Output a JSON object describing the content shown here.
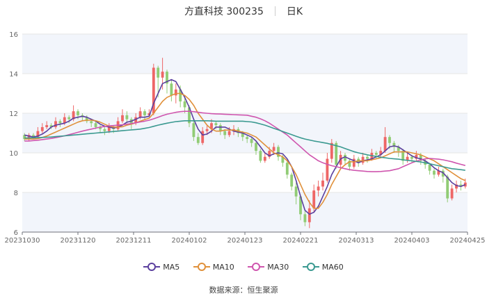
{
  "header": {
    "stock": "方直科技 300235",
    "period": "日K"
  },
  "source": "数据来源：恒生聚源",
  "colors": {
    "up": "#ee6666",
    "down": "#91cc75",
    "ma5": "#5b3f9e",
    "ma10": "#e0903a",
    "ma30": "#cf55ae",
    "ma60": "#3a9990",
    "grid": "#e6e6e6",
    "band": "#f2f5fb"
  },
  "chart_data": {
    "type": "candlestick",
    "title": "方直科技 300235",
    "subtitle": "日K",
    "ylim": [
      6,
      16
    ],
    "yticks": [
      6,
      8,
      10,
      12,
      14,
      16
    ],
    "xticks": [
      "20231030",
      "20231120",
      "20231211",
      "20240102",
      "20240123",
      "20240221",
      "20240313",
      "20240403",
      "20240425"
    ],
    "legend": [
      "MA5",
      "MA10",
      "MA30",
      "MA60"
    ],
    "candles": [
      [
        10.9,
        10.7,
        11.0,
        10.6
      ],
      [
        10.7,
        10.9,
        11.0,
        10.6
      ],
      [
        10.9,
        10.8,
        11.0,
        10.7
      ],
      [
        10.8,
        11.1,
        11.3,
        10.7
      ],
      [
        11.1,
        11.3,
        11.5,
        11.0
      ],
      [
        11.3,
        11.4,
        11.6,
        11.2
      ],
      [
        11.4,
        11.3,
        11.5,
        11.2
      ],
      [
        11.3,
        11.6,
        11.8,
        11.2
      ],
      [
        11.6,
        11.5,
        11.7,
        11.3
      ],
      [
        11.5,
        11.8,
        12.0,
        11.4
      ],
      [
        11.8,
        11.7,
        11.9,
        11.5
      ],
      [
        11.7,
        12.1,
        12.4,
        11.6
      ],
      [
        12.1,
        11.9,
        12.2,
        11.7
      ],
      [
        11.9,
        11.8,
        12.0,
        11.6
      ],
      [
        11.8,
        11.6,
        11.9,
        11.5
      ],
      [
        11.6,
        11.5,
        11.7,
        11.3
      ],
      [
        11.5,
        11.3,
        11.6,
        11.2
      ],
      [
        11.3,
        11.2,
        11.4,
        11.0
      ],
      [
        11.2,
        11.1,
        11.3,
        10.9
      ],
      [
        11.1,
        11.3,
        11.5,
        11.0
      ],
      [
        11.3,
        11.2,
        11.4,
        11.0
      ],
      [
        11.2,
        11.6,
        11.8,
        11.1
      ],
      [
        11.6,
        11.9,
        12.2,
        11.5
      ],
      [
        11.9,
        11.7,
        12.1,
        11.5
      ],
      [
        11.7,
        11.5,
        11.8,
        11.2
      ],
      [
        11.5,
        11.8,
        12.0,
        11.4
      ],
      [
        11.8,
        12.1,
        12.3,
        11.7
      ],
      [
        12.1,
        11.9,
        12.2,
        11.7
      ],
      [
        11.9,
        12.0,
        12.2,
        11.8
      ],
      [
        12.0,
        14.3,
        14.5,
        11.9
      ],
      [
        14.3,
        13.8,
        14.4,
        12.8
      ],
      [
        13.8,
        14.1,
        14.8,
        13.2
      ],
      [
        14.1,
        13.5,
        14.2,
        13.0
      ],
      [
        13.5,
        12.9,
        13.7,
        12.6
      ],
      [
        12.9,
        13.2,
        13.5,
        12.5
      ],
      [
        13.2,
        12.6,
        13.4,
        12.3
      ],
      [
        12.6,
        12.3,
        12.8,
        12.0
      ],
      [
        12.3,
        11.5,
        12.4,
        11.3
      ],
      [
        11.5,
        10.8,
        11.7,
        10.6
      ],
      [
        10.8,
        10.5,
        11.0,
        10.4
      ],
      [
        10.5,
        11.1,
        11.3,
        10.4
      ],
      [
        11.1,
        11.2,
        11.4,
        10.9
      ],
      [
        11.2,
        11.5,
        11.7,
        11.0
      ],
      [
        11.5,
        11.4,
        11.6,
        11.2
      ],
      [
        11.4,
        11.1,
        11.5,
        10.9
      ],
      [
        11.1,
        10.9,
        11.2,
        10.7
      ],
      [
        10.9,
        11.1,
        11.3,
        10.8
      ],
      [
        11.1,
        11.2,
        11.4,
        10.9
      ],
      [
        11.2,
        11.0,
        11.3,
        10.8
      ],
      [
        11.0,
        10.8,
        11.1,
        10.6
      ],
      [
        10.8,
        10.7,
        10.9,
        10.5
      ],
      [
        10.7,
        10.5,
        10.8,
        10.3
      ],
      [
        10.5,
        10.1,
        10.6,
        9.9
      ],
      [
        10.1,
        9.6,
        10.2,
        9.5
      ],
      [
        9.6,
        9.8,
        10.0,
        9.5
      ],
      [
        9.8,
        10.1,
        10.3,
        9.7
      ],
      [
        10.1,
        10.3,
        10.5,
        9.9
      ],
      [
        10.3,
        9.8,
        10.4,
        9.6
      ],
      [
        9.8,
        9.5,
        9.9,
        9.3
      ],
      [
        9.5,
        8.9,
        9.6,
        8.7
      ],
      [
        8.9,
        8.3,
        9.0,
        8.1
      ],
      [
        8.3,
        7.8,
        8.5,
        7.4
      ],
      [
        7.8,
        6.9,
        7.9,
        6.6
      ],
      [
        6.9,
        6.5,
        7.1,
        6.3
      ],
      [
        6.5,
        7.2,
        7.6,
        6.2
      ],
      [
        7.2,
        8.1,
        8.4,
        7.0
      ],
      [
        8.1,
        8.3,
        8.6,
        7.8
      ],
      [
        8.3,
        8.6,
        9.0,
        8.1
      ],
      [
        8.6,
        9.7,
        10.0,
        8.5
      ],
      [
        9.7,
        10.5,
        10.7,
        9.5
      ],
      [
        10.5,
        9.4,
        10.6,
        9.2
      ],
      [
        9.4,
        9.9,
        10.1,
        9.2
      ],
      [
        9.9,
        9.6,
        10.0,
        9.4
      ],
      [
        9.6,
        9.3,
        9.7,
        9.1
      ],
      [
        9.3,
        9.7,
        9.9,
        9.2
      ],
      [
        9.7,
        9.5,
        9.8,
        9.3
      ],
      [
        9.5,
        9.8,
        10.0,
        9.4
      ],
      [
        9.8,
        9.7,
        9.9,
        9.5
      ],
      [
        9.7,
        10.0,
        10.2,
        9.6
      ],
      [
        10.0,
        9.9,
        10.1,
        9.7
      ],
      [
        9.9,
        10.1,
        10.3,
        9.8
      ],
      [
        10.1,
        10.8,
        11.3,
        10.0
      ],
      [
        10.8,
        10.5,
        10.9,
        10.2
      ],
      [
        10.5,
        10.3,
        10.6,
        10.0
      ],
      [
        10.3,
        10.1,
        10.4,
        9.8
      ],
      [
        10.1,
        9.6,
        10.2,
        9.4
      ],
      [
        9.6,
        9.8,
        10.0,
        9.5
      ],
      [
        9.8,
        9.7,
        9.9,
        9.5
      ],
      [
        9.7,
        9.9,
        10.1,
        9.6
      ],
      [
        9.9,
        9.6,
        10.0,
        9.4
      ],
      [
        9.6,
        9.4,
        9.7,
        9.2
      ],
      [
        9.4,
        9.1,
        9.5,
        8.9
      ],
      [
        9.1,
        8.9,
        9.2,
        8.7
      ],
      [
        8.9,
        9.1,
        9.3,
        8.8
      ],
      [
        9.1,
        8.8,
        9.2,
        8.5
      ],
      [
        8.8,
        7.7,
        8.9,
        7.5
      ],
      [
        7.7,
        8.2,
        8.4,
        7.6
      ],
      [
        8.2,
        8.4,
        8.6,
        8.0
      ],
      [
        8.4,
        8.3,
        8.6,
        8.1
      ],
      [
        8.3,
        8.5,
        8.7,
        8.2
      ]
    ],
    "series": [
      {
        "name": "MA5",
        "values": [
          10.9,
          10.85,
          10.8,
          10.85,
          10.95,
          11.1,
          11.3,
          11.4,
          11.45,
          11.5,
          11.6,
          11.75,
          11.8,
          11.85,
          11.8,
          11.7,
          11.6,
          11.45,
          11.35,
          11.3,
          11.25,
          11.3,
          11.4,
          11.55,
          11.6,
          11.7,
          11.8,
          11.8,
          11.85,
          12.5,
          13.0,
          13.5,
          13.6,
          13.7,
          13.6,
          13.2,
          12.8,
          12.3,
          11.7,
          11.2,
          10.9,
          10.95,
          11.1,
          11.3,
          11.3,
          11.3,
          11.2,
          11.1,
          11.05,
          11.0,
          10.9,
          10.8,
          10.6,
          10.3,
          10.0,
          9.85,
          9.95,
          10.0,
          9.95,
          9.7,
          9.3,
          8.6,
          7.8,
          7.1,
          6.9,
          7.0,
          7.3,
          7.8,
          8.3,
          8.9,
          9.3,
          9.7,
          9.8,
          9.7,
          9.6,
          9.5,
          9.6,
          9.65,
          9.7,
          9.8,
          9.9,
          10.1,
          10.3,
          10.35,
          10.3,
          10.15,
          10.0,
          9.85,
          9.75,
          9.7,
          9.6,
          9.45,
          9.25,
          9.1,
          9.0,
          8.75,
          8.5,
          8.35,
          8.3,
          8.4
        ]
      },
      {
        "name": "MA10",
        "values": [
          10.7,
          10.7,
          10.7,
          10.72,
          10.78,
          10.85,
          10.95,
          11.05,
          11.15,
          11.25,
          11.35,
          11.45,
          11.55,
          11.62,
          11.65,
          11.65,
          11.62,
          11.55,
          11.45,
          11.35,
          11.3,
          11.3,
          11.32,
          11.4,
          11.45,
          11.52,
          11.6,
          11.68,
          11.75,
          12.0,
          12.3,
          12.6,
          12.8,
          12.9,
          13.0,
          13.0,
          12.9,
          12.7,
          12.4,
          12.0,
          11.7,
          11.4,
          11.2,
          11.1,
          11.1,
          11.15,
          11.15,
          11.15,
          11.1,
          11.05,
          11.0,
          10.9,
          10.8,
          10.6,
          10.4,
          10.2,
          10.0,
          9.9,
          9.8,
          9.6,
          9.3,
          8.9,
          8.4,
          7.9,
          7.5,
          7.2,
          7.2,
          7.5,
          7.9,
          8.4,
          8.8,
          9.2,
          9.4,
          9.55,
          9.55,
          9.6,
          9.6,
          9.6,
          9.65,
          9.7,
          9.75,
          9.85,
          9.95,
          10.05,
          10.05,
          10.05,
          10.05,
          10.0,
          9.95,
          9.9,
          9.8,
          9.7,
          9.6,
          9.45,
          9.3,
          9.15,
          9.0,
          8.85,
          8.7,
          8.6
        ]
      },
      {
        "name": "MA30",
        "values": [
          10.6,
          10.6,
          10.62,
          10.64,
          10.67,
          10.7,
          10.73,
          10.77,
          10.81,
          10.86,
          10.92,
          10.98,
          11.04,
          11.1,
          11.15,
          11.2,
          11.25,
          11.3,
          11.33,
          11.36,
          11.38,
          11.4,
          11.42,
          11.45,
          11.48,
          11.52,
          11.56,
          11.6,
          11.65,
          11.72,
          11.8,
          11.88,
          11.95,
          12.0,
          12.05,
          12.08,
          12.1,
          12.1,
          12.08,
          12.05,
          12.02,
          12.0,
          11.98,
          11.97,
          11.96,
          11.95,
          11.94,
          11.93,
          11.92,
          11.91,
          11.9,
          11.85,
          11.8,
          11.72,
          11.62,
          11.5,
          11.35,
          11.2,
          11.05,
          10.9,
          10.7,
          10.5,
          10.3,
          10.1,
          9.9,
          9.75,
          9.6,
          9.5,
          9.42,
          9.35,
          9.3,
          9.25,
          9.2,
          9.15,
          9.12,
          9.1,
          9.08,
          9.06,
          9.05,
          9.05,
          9.06,
          9.08,
          9.1,
          9.15,
          9.2,
          9.3,
          9.4,
          9.5,
          9.58,
          9.65,
          9.7,
          9.72,
          9.7,
          9.68,
          9.65,
          9.6,
          9.55,
          9.48,
          9.42,
          9.36
        ]
      },
      {
        "name": "MA60",
        "values": [
          10.75,
          10.75,
          10.76,
          10.77,
          10.78,
          10.79,
          10.8,
          10.82,
          10.84,
          10.86,
          10.88,
          10.9,
          10.92,
          10.94,
          10.96,
          10.98,
          11.0,
          11.02,
          11.04,
          11.06,
          11.08,
          11.1,
          11.12,
          11.14,
          11.16,
          11.18,
          11.2,
          11.24,
          11.28,
          11.34,
          11.4,
          11.45,
          11.5,
          11.54,
          11.58,
          11.6,
          11.62,
          11.62,
          11.62,
          11.62,
          11.62,
          11.62,
          11.61,
          11.6,
          11.6,
          11.6,
          11.6,
          11.6,
          11.6,
          11.6,
          11.58,
          11.56,
          11.52,
          11.46,
          11.4,
          11.32,
          11.24,
          11.16,
          11.08,
          11.0,
          10.92,
          10.84,
          10.76,
          10.7,
          10.65,
          10.6,
          10.56,
          10.52,
          10.48,
          10.42,
          10.36,
          10.3,
          10.22,
          10.14,
          10.06,
          10.0,
          9.95,
          9.9,
          9.86,
          9.82,
          9.78,
          9.75,
          9.72,
          9.7,
          9.68,
          9.65,
          9.62,
          9.6,
          9.57,
          9.54,
          9.5,
          9.45,
          9.4,
          9.35,
          9.3,
          9.25,
          9.2,
          9.18,
          9.15,
          9.12
        ]
      }
    ]
  }
}
